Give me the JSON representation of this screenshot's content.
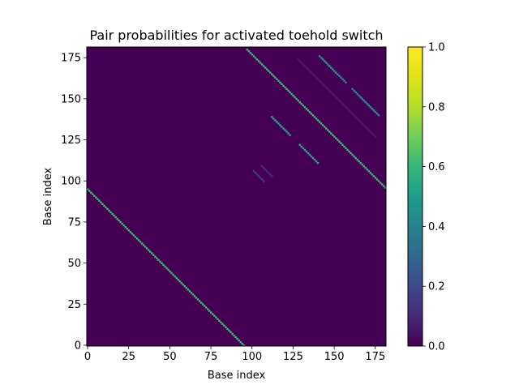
{
  "chart_data": {
    "type": "heatmap",
    "title": "Pair probabilities for activated toehold switch",
    "xlabel": "Base index",
    "ylabel": "Base index",
    "n_bases": 182,
    "xlim": [
      -0.5,
      181.5
    ],
    "ylim": [
      181.5,
      -0.5
    ],
    "x_ticks": [
      0,
      25,
      50,
      75,
      100,
      125,
      150,
      175
    ],
    "y_ticks": [
      0,
      25,
      50,
      75,
      100,
      125,
      150,
      175
    ],
    "colormap": "viridis",
    "colorbar": {
      "min": 0.0,
      "max": 1.0,
      "ticks": [
        0.0,
        0.2,
        0.4,
        0.6,
        0.8,
        1.0
      ]
    },
    "background_value": 0.0,
    "structures": [
      {
        "name": "main antidiagonal",
        "i_start": 0,
        "j_start": 96,
        "i_end": 96,
        "j_end": 0,
        "value": 0.62
      },
      {
        "name": "hairpin antidiagonal",
        "i_start": 97,
        "j_start": 181,
        "i_end": 181,
        "j_end": 97,
        "value": 0.62
      },
      {
        "name": "helix A",
        "i_start": 140,
        "j_start": 112,
        "i_end": 129,
        "j_end": 123,
        "value": 0.55
      },
      {
        "name": "helix A mirror",
        "i_start": 112,
        "j_start": 140,
        "i_end": 123,
        "j_end": 129,
        "value": 0.55
      },
      {
        "name": "helix B",
        "i_start": 176,
        "j_start": 142,
        "i_end": 166,
        "j_end": 152,
        "value": 0.5
      },
      {
        "name": "helix B mirror",
        "i_start": 142,
        "j_start": 176,
        "i_end": 152,
        "j_end": 166,
        "value": 0.5
      },
      {
        "name": "helix C",
        "i_start": 157,
        "j_start": 161,
        "i_end": 141,
        "j_end": 177,
        "value": 0.45
      },
      {
        "name": "helix C mirror",
        "i_start": 161,
        "j_start": 157,
        "i_end": 177,
        "j_end": 141,
        "value": 0.45
      },
      {
        "name": "weak pair 1",
        "i_start": 101,
        "j_start": 107,
        "i_end": 107,
        "j_end": 101,
        "value": 0.18
      },
      {
        "name": "weak pair 2",
        "i_start": 110,
        "j_start": 106,
        "i_end": 104,
        "j_end": 112,
        "value": 0.12
      },
      {
        "name": "faint diagonal",
        "i_start": 175,
        "j_start": 128,
        "i_end": 128,
        "j_end": 175,
        "value": 0.07
      }
    ]
  }
}
